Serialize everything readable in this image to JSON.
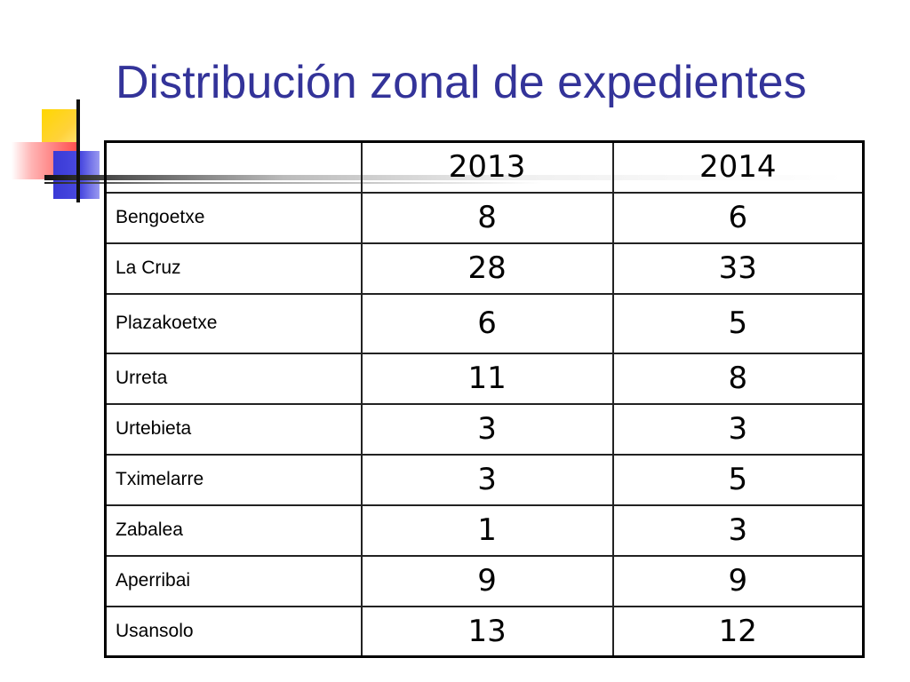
{
  "slide": {
    "title": "Distribución zonal de expedientes"
  },
  "table": {
    "columns": [
      "",
      "2013",
      "2014"
    ],
    "rows": [
      {
        "zone": "Bengoetxe",
        "y2013": "8",
        "y2014": "6"
      },
      {
        "zone": "La Cruz",
        "y2013": "28",
        "y2014": "33"
      },
      {
        "zone": "Plazakoetxe",
        "y2013": "6",
        "y2014": "5"
      },
      {
        "zone": "Urreta",
        "y2013": "11",
        "y2014": "8"
      },
      {
        "zone": "Urtebieta",
        "y2013": "3",
        "y2014": "3"
      },
      {
        "zone": "Tximelarre",
        "y2013": "3",
        "y2014": "5"
      },
      {
        "zone": "Zabalea",
        "y2013": "1",
        "y2014": "3"
      },
      {
        "zone": "Aperribai",
        "y2013": "9",
        "y2014": "9"
      },
      {
        "zone": "Usansolo",
        "y2013": "13",
        "y2014": "12"
      }
    ]
  },
  "colors": {
    "title": "#333399",
    "accent_yellow": "#ffd700",
    "accent_red": "#ff4a4a",
    "accent_blue": "#3a3ad6"
  }
}
